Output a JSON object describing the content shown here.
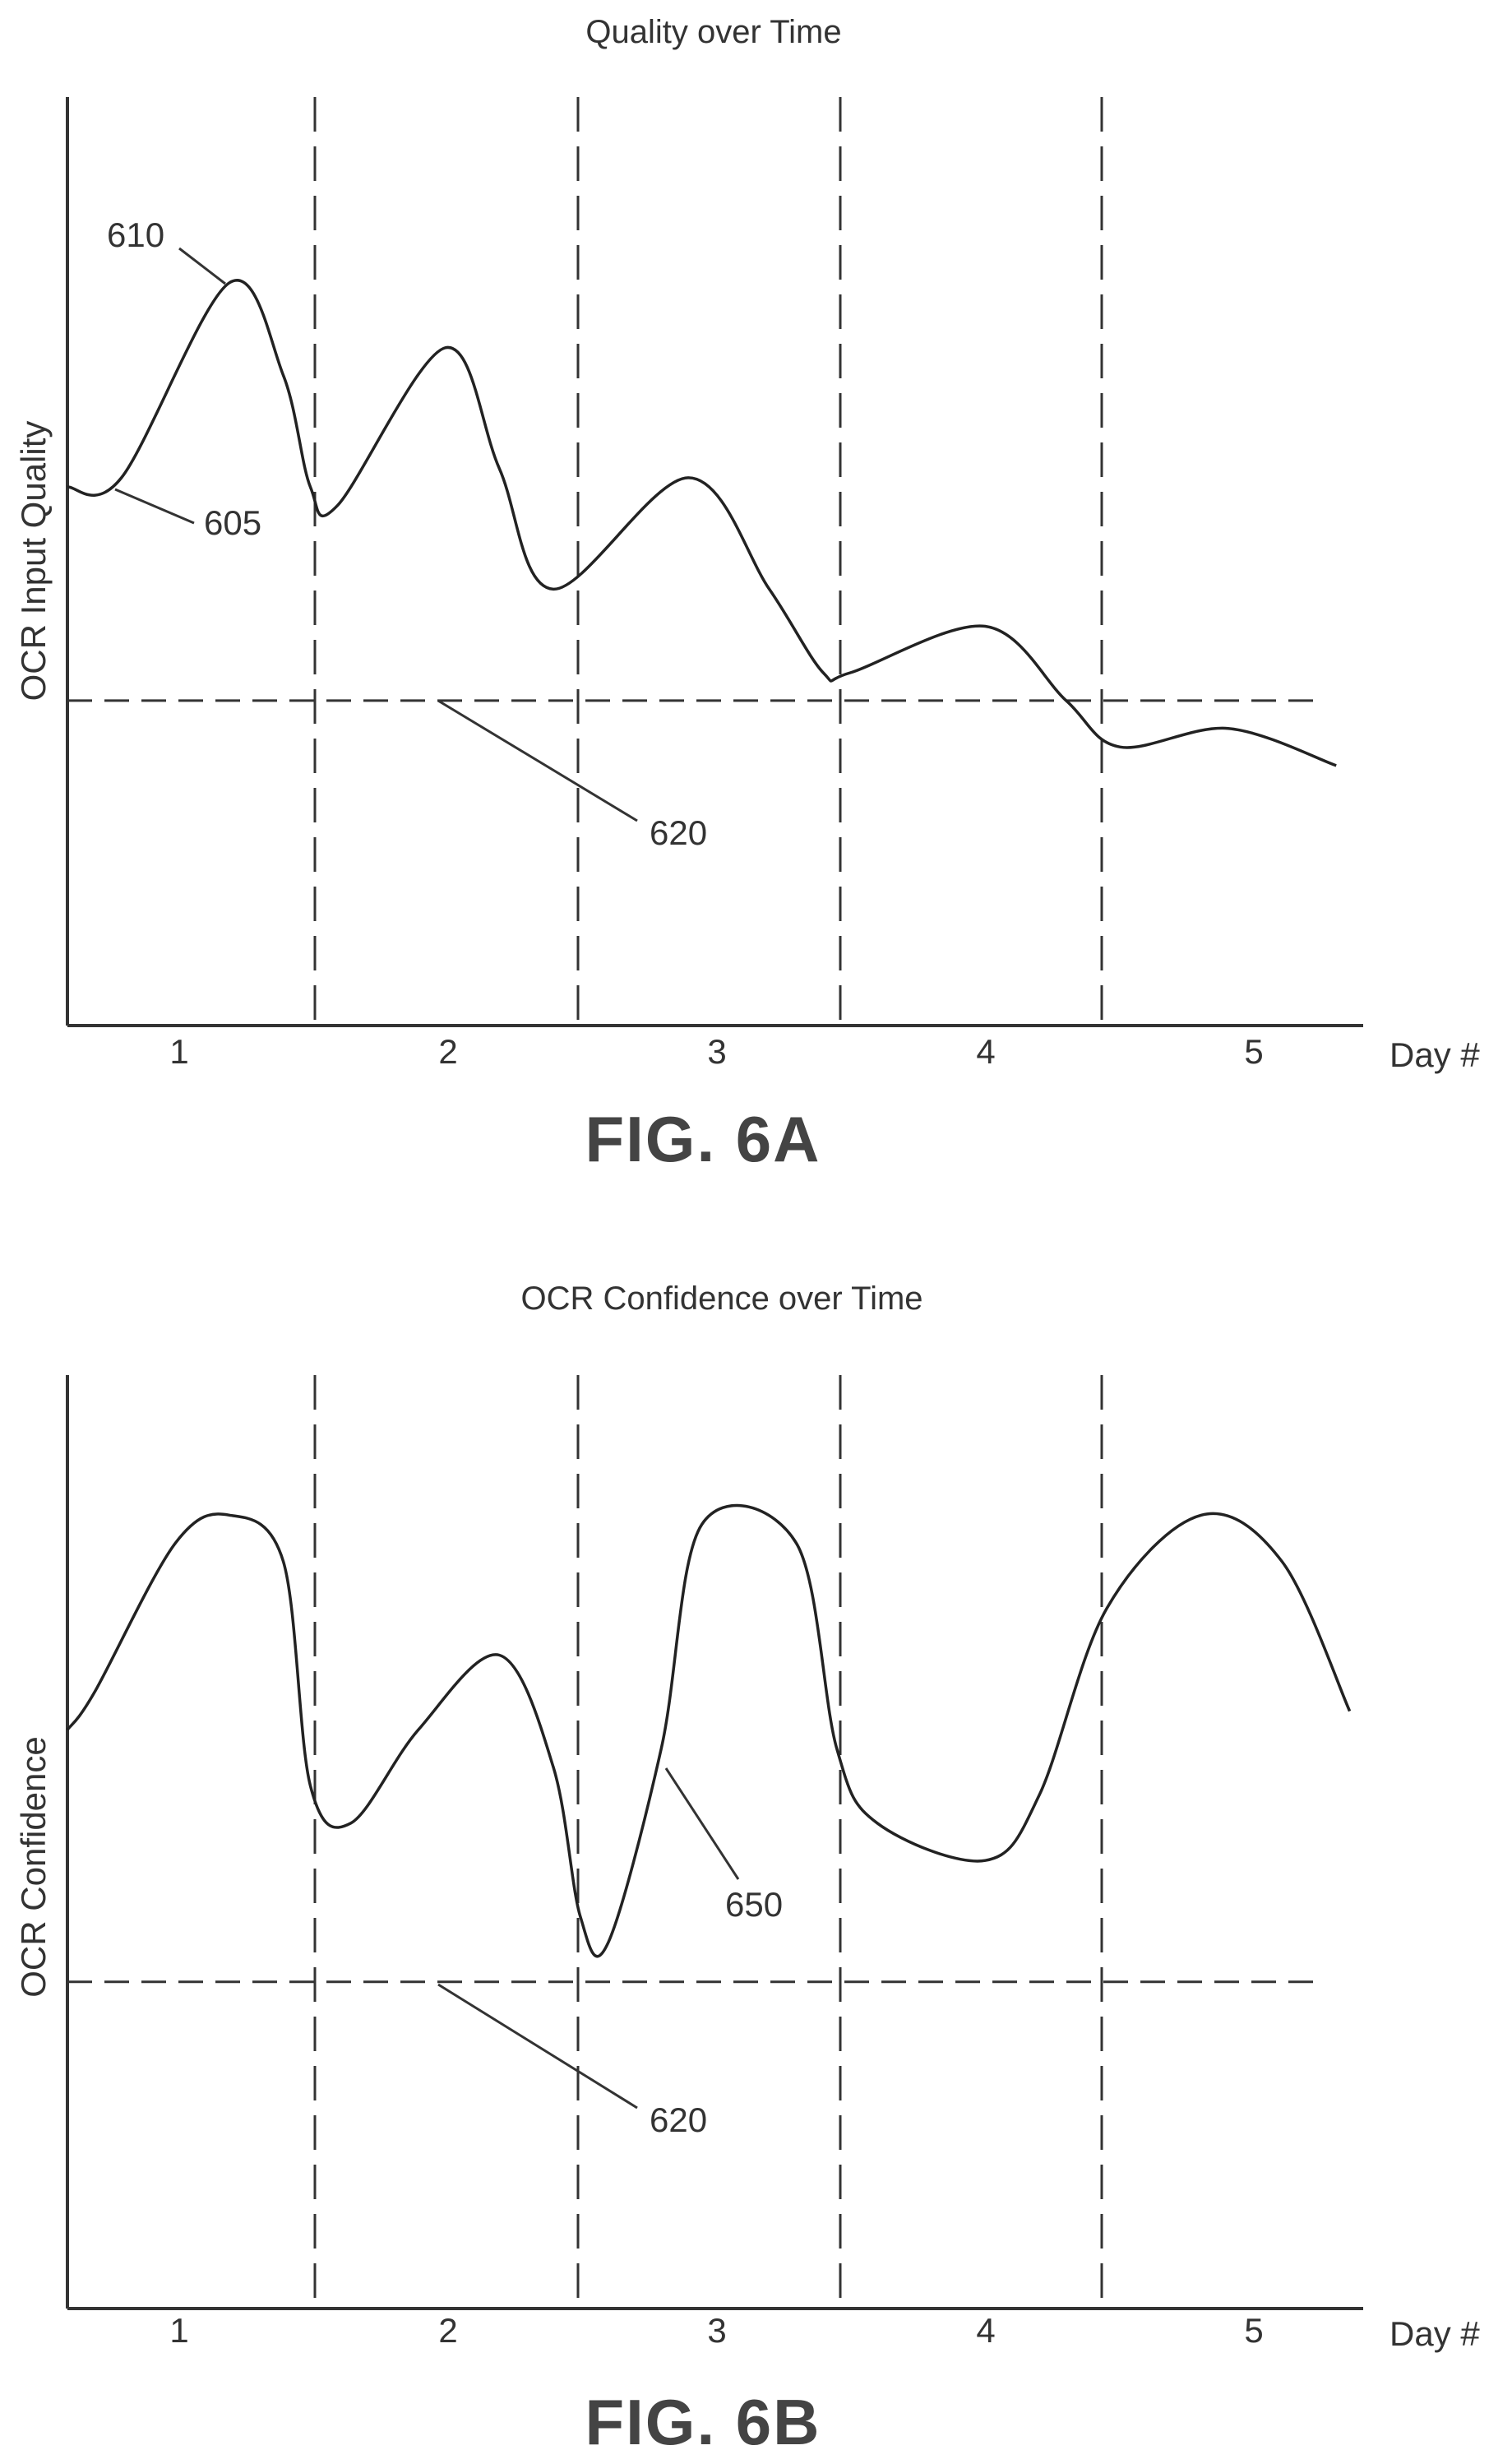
{
  "chart_data": [
    {
      "type": "line",
      "title": "Quality over Time",
      "xlabel": "Day #",
      "ylabel": "OCR Input Quality",
      "categories": [
        "1",
        "2",
        "3",
        "4",
        "5"
      ],
      "xlim": [
        0.6,
        5.4
      ],
      "ylim": [
        0,
        100
      ],
      "threshold": 35,
      "series": [
        {
          "x": [
            0.6,
            0.8,
            1.2,
            1.4,
            1.5,
            1.6,
            2.0,
            2.2,
            2.4,
            2.9,
            3.2,
            3.4,
            3.5,
            4.0,
            4.3,
            4.5,
            4.9,
            5.3
          ],
          "values": [
            58,
            59,
            80,
            70,
            58,
            56,
            73,
            60,
            47,
            59,
            47,
            38,
            38,
            43,
            35,
            30,
            32,
            28
          ]
        }
      ],
      "annotations": [
        {
          "label": "610",
          "x": 1.2,
          "y": 80
        },
        {
          "label": "605",
          "x": 0.8,
          "y": 58
        },
        {
          "label": "620",
          "x": 2.2,
          "y": 35
        }
      ],
      "figure_label": "FIG. 6A"
    },
    {
      "type": "line",
      "title": "OCR Confidence over Time",
      "xlabel": "Day #",
      "ylabel": "OCR Confidence",
      "categories": [
        "1",
        "2",
        "3",
        "4",
        "5"
      ],
      "xlim": [
        0.6,
        5.4
      ],
      "ylim": [
        0,
        100
      ],
      "threshold": 35,
      "series": [
        {
          "x": [
            0.6,
            0.7,
            1.0,
            1.2,
            1.4,
            1.5,
            1.65,
            1.9,
            2.2,
            2.4,
            2.5,
            2.6,
            2.8,
            2.95,
            3.3,
            3.45,
            3.6,
            4.0,
            4.2,
            4.45,
            4.8,
            5.1,
            5.35
          ],
          "values": [
            62,
            66,
            82,
            85,
            80,
            56,
            52,
            62,
            70,
            58,
            42,
            39,
            60,
            84,
            82,
            60,
            52,
            48,
            55,
            75,
            85,
            80,
            64
          ]
        }
      ],
      "annotations": [
        {
          "label": "650",
          "x": 2.8,
          "y": 56
        },
        {
          "label": "620",
          "x": 2.2,
          "y": 35
        }
      ],
      "figure_label": "FIG. 6B"
    }
  ]
}
